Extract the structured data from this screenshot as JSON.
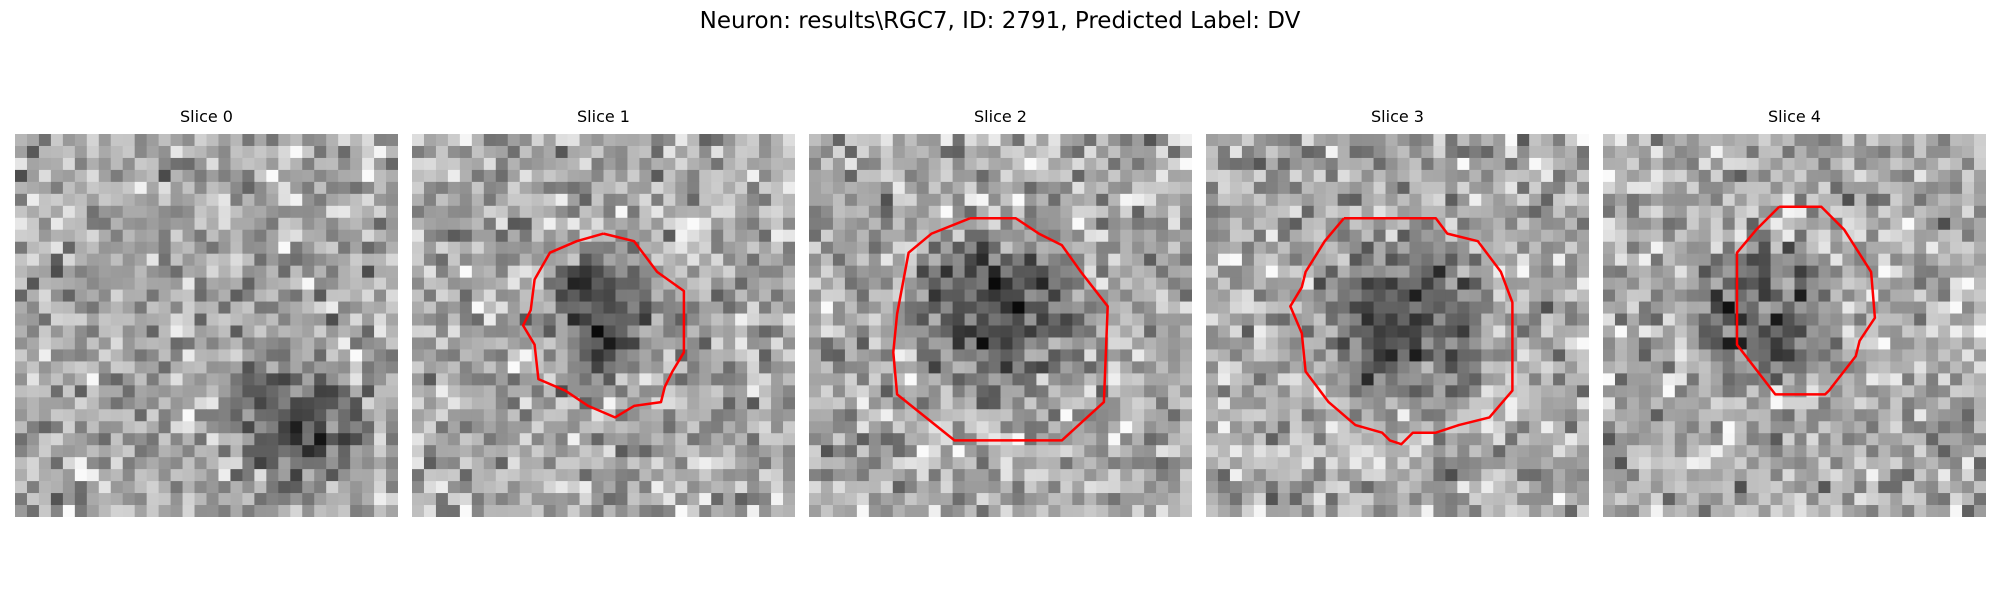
{
  "figure": {
    "title": "Neuron: results\\RGC7, ID: 2791, Predicted Label: DV"
  },
  "slices": [
    {
      "title": "Slice 0",
      "dark_center": [
        0.73,
        0.75
      ],
      "dark_radius": 0.22,
      "has_outline": false,
      "outline": []
    },
    {
      "title": "Slice 1",
      "dark_center": [
        0.5,
        0.47
      ],
      "dark_radius": 0.2,
      "has_outline": true,
      "outline": [
        [
          0.5,
          0.26
        ],
        [
          0.58,
          0.28
        ],
        [
          0.64,
          0.36
        ],
        [
          0.71,
          0.41
        ],
        [
          0.71,
          0.57
        ],
        [
          0.68,
          0.62
        ],
        [
          0.66,
          0.66
        ],
        [
          0.65,
          0.7
        ],
        [
          0.58,
          0.71
        ],
        [
          0.53,
          0.74
        ],
        [
          0.46,
          0.71
        ],
        [
          0.4,
          0.67
        ],
        [
          0.33,
          0.64
        ],
        [
          0.32,
          0.55
        ],
        [
          0.29,
          0.5
        ],
        [
          0.31,
          0.46
        ],
        [
          0.32,
          0.38
        ],
        [
          0.36,
          0.31
        ],
        [
          0.43,
          0.28
        ],
        [
          0.5,
          0.26
        ]
      ]
    },
    {
      "title": "Slice 2",
      "dark_center": [
        0.5,
        0.47
      ],
      "dark_radius": 0.26,
      "has_outline": true,
      "outline": [
        [
          0.42,
          0.22
        ],
        [
          0.54,
          0.22
        ],
        [
          0.6,
          0.26
        ],
        [
          0.66,
          0.29
        ],
        [
          0.71,
          0.36
        ],
        [
          0.78,
          0.45
        ],
        [
          0.77,
          0.7
        ],
        [
          0.66,
          0.8
        ],
        [
          0.38,
          0.8
        ],
        [
          0.23,
          0.68
        ],
        [
          0.22,
          0.57
        ],
        [
          0.23,
          0.47
        ],
        [
          0.26,
          0.31
        ],
        [
          0.32,
          0.26
        ],
        [
          0.42,
          0.22
        ]
      ]
    },
    {
      "title": "Slice 3",
      "dark_center": [
        0.52,
        0.5
      ],
      "dark_radius": 0.27,
      "has_outline": true,
      "outline": [
        [
          0.36,
          0.22
        ],
        [
          0.6,
          0.22
        ],
        [
          0.63,
          0.26
        ],
        [
          0.71,
          0.28
        ],
        [
          0.77,
          0.36
        ],
        [
          0.8,
          0.44
        ],
        [
          0.8,
          0.67
        ],
        [
          0.74,
          0.74
        ],
        [
          0.66,
          0.76
        ],
        [
          0.6,
          0.78
        ],
        [
          0.54,
          0.78
        ],
        [
          0.51,
          0.81
        ],
        [
          0.48,
          0.8
        ],
        [
          0.46,
          0.78
        ],
        [
          0.39,
          0.76
        ],
        [
          0.32,
          0.7
        ],
        [
          0.26,
          0.62
        ],
        [
          0.25,
          0.52
        ],
        [
          0.22,
          0.45
        ],
        [
          0.25,
          0.4
        ],
        [
          0.26,
          0.36
        ],
        [
          0.31,
          0.28
        ],
        [
          0.36,
          0.22
        ]
      ]
    },
    {
      "title": "Slice 4",
      "dark_center": [
        0.42,
        0.47
      ],
      "dark_radius": 0.22,
      "has_outline": true,
      "outline": [
        [
          0.46,
          0.19
        ],
        [
          0.57,
          0.19
        ],
        [
          0.63,
          0.25
        ],
        [
          0.7,
          0.36
        ],
        [
          0.71,
          0.48
        ],
        [
          0.67,
          0.54
        ],
        [
          0.66,
          0.58
        ],
        [
          0.59,
          0.67
        ],
        [
          0.58,
          0.68
        ],
        [
          0.45,
          0.68
        ],
        [
          0.35,
          0.55
        ],
        [
          0.35,
          0.31
        ],
        [
          0.4,
          0.25
        ],
        [
          0.46,
          0.19
        ]
      ]
    }
  ],
  "colors": {
    "outline": "#ff0000",
    "background": "#ffffff"
  }
}
